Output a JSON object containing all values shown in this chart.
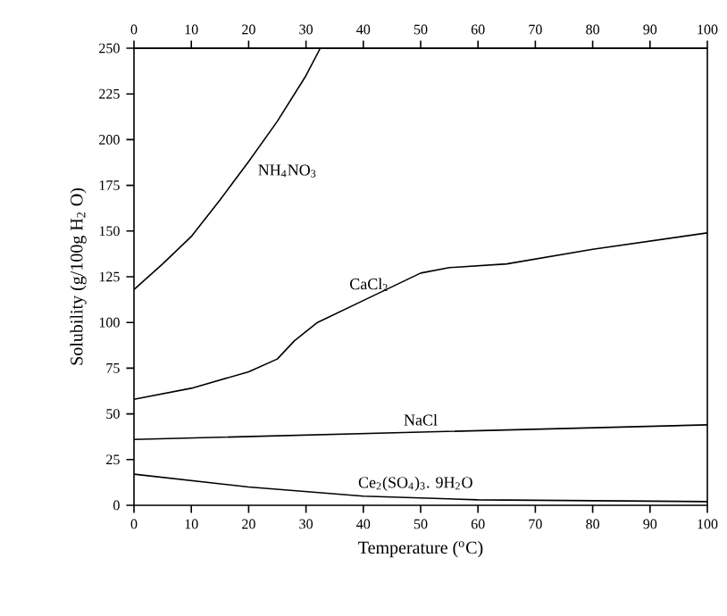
{
  "chart_data": {
    "type": "line",
    "xlabel": "Temperature ($^{o}$C)",
    "ylabel": "Solubility (g/100g H$_{2}$ O)",
    "xlim": [
      0,
      100
    ],
    "xticks": [
      0,
      10,
      20,
      30,
      40,
      50,
      60,
      70,
      80,
      90,
      100
    ],
    "x2lim": [
      0,
      100
    ],
    "x2ticks": [
      0,
      10,
      20,
      30,
      40,
      50,
      60,
      70,
      80,
      90,
      100
    ],
    "ylim": [
      0,
      250
    ],
    "yticks": [
      0,
      25,
      50,
      75,
      100,
      125,
      150,
      175,
      200,
      225,
      250
    ],
    "marker": "none",
    "line_style": "solid",
    "series": [
      {
        "name": "NH$_{4}$NO$_{3}$",
        "color": "#000000",
        "x": [
          0,
          5,
          10,
          15,
          20,
          25,
          30,
          32.5
        ],
        "values": [
          118,
          132,
          147,
          167,
          188,
          210,
          235,
          250
        ]
      },
      {
        "name": "CaCl$_{2}$",
        "color": "#000000",
        "x": [
          0,
          10,
          20,
          25,
          28,
          32,
          40,
          50,
          55,
          65,
          80,
          100
        ],
        "values": [
          58,
          64,
          73,
          80,
          90,
          100,
          112,
          127,
          130,
          132,
          140,
          149
        ]
      },
      {
        "name": "NaCl",
        "color": "#000000",
        "x": [
          0,
          50,
          100
        ],
        "values": [
          36,
          40,
          44
        ]
      },
      {
        "name": "Ce$_{2}$(SO$_{4}$)$_{3}$. 9H$_{2}$O",
        "color": "#000000",
        "x": [
          0,
          20,
          40,
          60,
          100
        ],
        "values": [
          17,
          10,
          5,
          3,
          2
        ]
      }
    ]
  }
}
